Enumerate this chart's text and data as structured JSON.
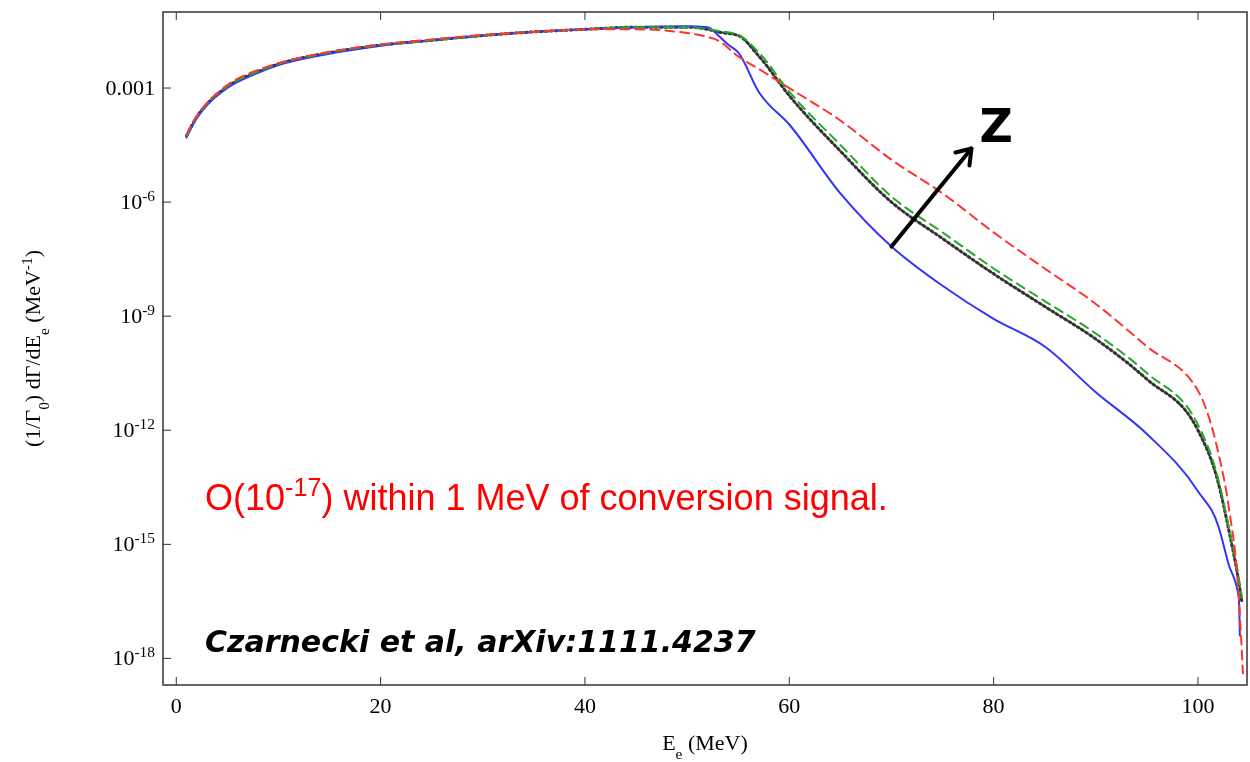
{
  "chart_data": {
    "type": "line",
    "xlabel": "E$_{e}$ (MeV)",
    "ylabel": "(1/Γ$_{0}$) dΓ/dE$_{e}$ (MeV$^{-1}$)",
    "log": "y",
    "xlim": [
      -1.3,
      104.8
    ],
    "ylim": [
      2e-19,
      0.1
    ],
    "xticks": [
      0,
      20,
      40,
      60,
      80,
      100
    ],
    "yticks": [
      {
        "value": 0.001,
        "label": "0.001"
      },
      {
        "value": 1e-06,
        "label": "10$^{-6}$"
      },
      {
        "value": 1e-09,
        "label": "10$^{-9}$"
      },
      {
        "value": 1e-12,
        "label": "10$^{-12}$"
      },
      {
        "value": 1e-15,
        "label": "10$^{-15}$"
      },
      {
        "value": 1e-18,
        "label": "10$^{-18}$"
      }
    ],
    "grid": false,
    "annotations": [
      {
        "text": "Z",
        "x": 70,
        "y": 6.8e-08
      },
      "O(10$^{-17}$) within 1 MeV of conversion signal.",
      "Czarnecki et al, arXiv:1111.4237"
    ],
    "series": [
      {
        "color": "#3333ff",
        "line_style": "solid",
        "x": [
          1,
          2,
          3,
          5,
          8,
          10,
          15,
          20,
          25,
          30,
          35,
          40,
          45,
          50,
          52,
          53,
          54,
          55,
          57,
          60,
          65,
          70,
          75,
          80,
          85,
          90,
          95,
          100,
          102,
          103,
          104,
          104.1
        ],
        "values": [
          5e-05,
          0.00016,
          0.00035,
          0.001,
          0.0025,
          0.004,
          0.008,
          0.013,
          0.018,
          0.024,
          0.03,
          0.035,
          0.04,
          0.042,
          0.04,
          0.025,
          0.014,
          0.0087,
          0.0008,
          0.00011,
          1.7e-06,
          6.8e-08,
          6.3e-09,
          8.5e-10,
          1.6e-10,
          1e-11,
          8e-13,
          2.5e-14,
          3e-15,
          3e-16,
          4e-17,
          4e-18
        ]
      },
      {
        "color": "#333333",
        "line_style": "dotted",
        "x": [
          1,
          2,
          3,
          5,
          8,
          10,
          15,
          20,
          25,
          30,
          35,
          40,
          45,
          50,
          52,
          53,
          55,
          57,
          60,
          65,
          70,
          75,
          80,
          85,
          90,
          95,
          100,
          102,
          103,
          104,
          104.3
        ],
        "values": [
          5.5e-05,
          0.000175,
          0.00038,
          0.0011,
          0.0027,
          0.0043,
          0.0085,
          0.0135,
          0.018,
          0.024,
          0.03,
          0.035,
          0.04,
          0.04,
          0.035,
          0.03,
          0.024,
          0.007,
          0.00063,
          2.2e-05,
          1e-06,
          1.1e-07,
          1.3e-08,
          1.8e-09,
          2.5e-10,
          2.2e-11,
          1e-12,
          4e-14,
          2.5e-15,
          1e-16,
          3e-17
        ]
      },
      {
        "color": "#22aa22",
        "line_style": "dashed",
        "x": [
          1,
          2,
          3,
          5,
          8,
          10,
          15,
          20,
          25,
          30,
          35,
          40,
          45,
          50,
          52,
          53,
          55,
          57,
          60,
          65,
          70,
          75,
          80,
          85,
          90,
          95,
          100,
          102,
          103,
          104,
          104.3
        ],
        "values": [
          5.5e-05,
          0.000175,
          0.00038,
          0.0011,
          0.0027,
          0.0043,
          0.0085,
          0.0135,
          0.018,
          0.024,
          0.03,
          0.035,
          0.04,
          0.04,
          0.035,
          0.032,
          0.025,
          0.0087,
          0.0008,
          3.2e-05,
          1.4e-06,
          1.6e-07,
          1.8e-08,
          2.5e-09,
          3.5e-10,
          3.2e-11,
          1.4e-12,
          5e-14,
          3e-15,
          1.3e-16,
          4e-17
        ]
      },
      {
        "color": "#ff3333",
        "line_style": "dashed",
        "x": [
          1,
          2,
          3,
          5,
          8,
          10,
          15,
          20,
          25,
          30,
          35,
          40,
          45,
          50,
          52,
          53,
          55,
          57,
          60,
          65,
          70,
          75,
          80,
          85,
          90,
          95,
          100,
          102,
          103,
          104,
          104.4
        ],
        "values": [
          6e-05,
          0.00018,
          0.0004,
          0.0012,
          0.003,
          0.0045,
          0.009,
          0.014,
          0.019,
          0.025,
          0.03,
          0.035,
          0.035,
          0.028,
          0.022,
          0.018,
          0.0068,
          0.0032,
          0.001,
          0.00014,
          1.3e-05,
          1.7e-06,
          1.6e-07,
          1.8e-08,
          2.1e-09,
          1.6e-10,
          1.1e-11,
          2.5e-13,
          1e-14,
          4e-17,
          4e-19
        ]
      }
    ]
  }
}
